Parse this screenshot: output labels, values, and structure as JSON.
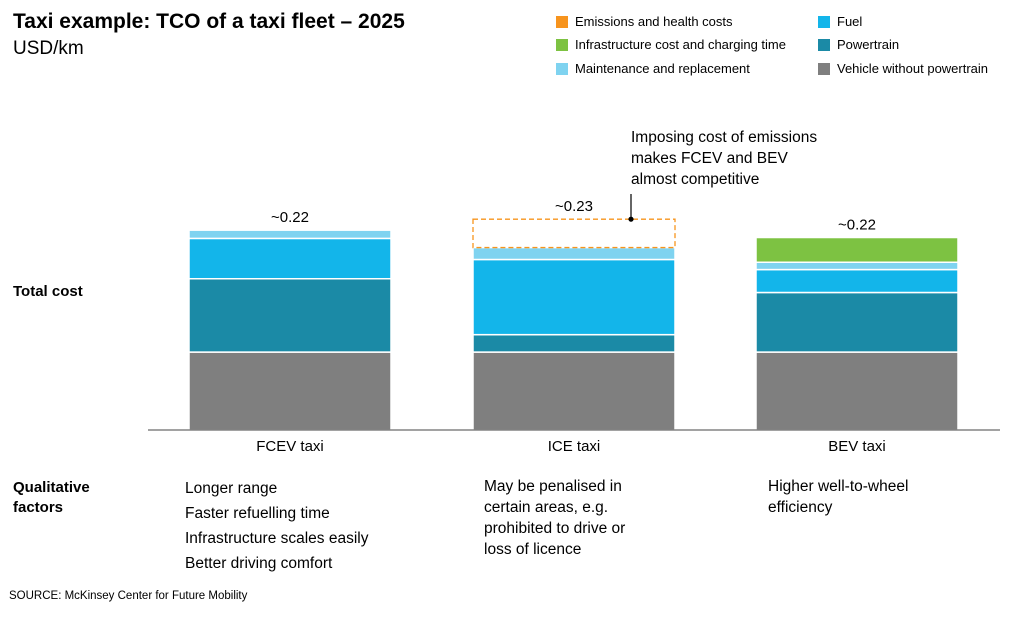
{
  "title": "Taxi example: TCO of a taxi fleet – 2025",
  "subtitle": "USD/km",
  "row_labels": {
    "total_cost": "Total cost",
    "qualitative": "Qualitative factors"
  },
  "legend": [
    {
      "label": "Emissions and health costs",
      "color": "#F7941D"
    },
    {
      "label": "Fuel",
      "color": "#13B5EA"
    },
    {
      "label": "Infrastructure cost and charging time",
      "color": "#7DC242"
    },
    {
      "label": "Powertrain",
      "color": "#1B8AA6"
    },
    {
      "label": "Maintenance and replacement",
      "color": "#7FD3F0"
    },
    {
      "label": "Vehicle without powertrain",
      "color": "#7F7F7F"
    }
  ],
  "chart_data": {
    "type": "bar",
    "stacked": true,
    "categories": [
      "FCEV taxi",
      "ICE taxi",
      "BEV taxi"
    ],
    "totals_labels": [
      "~0.22",
      "~0.23",
      "~0.22"
    ],
    "series": [
      {
        "name": "Vehicle without powertrain",
        "color": "#7F7F7F",
        "values": [
          0.085,
          0.085,
          0.085
        ]
      },
      {
        "name": "Powertrain",
        "color": "#1B8AA6",
        "values": [
          0.08,
          0.019,
          0.065
        ]
      },
      {
        "name": "Fuel",
        "color": "#13B5EA",
        "values": [
          0.044,
          0.082,
          0.025
        ]
      },
      {
        "name": "Maintenance and replacement",
        "color": "#7FD3F0",
        "values": [
          0.009,
          0.013,
          0.008
        ]
      },
      {
        "name": "Infrastructure cost and charging time",
        "color": "#7DC242",
        "values": [
          0,
          0,
          0.027
        ]
      },
      {
        "name": "Emissions and health costs",
        "color": "#F7941D",
        "values": [
          0,
          0.031,
          0
        ],
        "style": "dashed-outline"
      }
    ],
    "annotation": {
      "text": [
        "Imposing cost of emissions",
        "makes FCEV and BEV",
        "almost competitive"
      ],
      "target_category": "ICE taxi"
    },
    "ylim": [
      0,
      0.24
    ],
    "grid": false,
    "legend": "top-right"
  },
  "qualitative": [
    [
      "Longer range",
      "Faster refuelling time",
      "Infrastructure scales easily",
      "Better driving comfort"
    ],
    [
      "May be penalised in",
      "certain areas, e.g.",
      "prohibited to drive or",
      "loss of licence"
    ],
    [
      "Higher well-to-wheel",
      "efficiency"
    ]
  ],
  "source": "SOURCE: McKinsey Center for Future Mobility"
}
